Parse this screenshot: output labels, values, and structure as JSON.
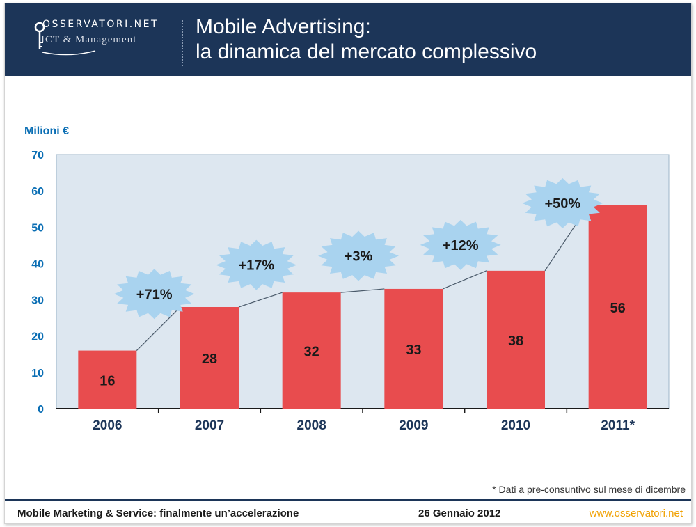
{
  "header": {
    "logo_brand": "OSSERVATORI.NET",
    "logo_sub": "ICT & Management",
    "title_line1": "Mobile Advertising:",
    "title_line2": "la dinamica del mercato complessivo"
  },
  "colors": {
    "header_bg": "#1c3558",
    "bar": "#e84c4e",
    "plot_bg": "#dde7f0",
    "badge": "#a9d3ef",
    "axis_text": "#0a6eb4",
    "footer_url": "#f0a000"
  },
  "chart_data": {
    "type": "bar",
    "ylabel": "Milioni €",
    "ylim": [
      0,
      70
    ],
    "yticks": [
      0,
      10,
      20,
      30,
      40,
      50,
      60,
      70
    ],
    "categories": [
      "2006",
      "2007",
      "2008",
      "2009",
      "2010",
      "2011*"
    ],
    "values": [
      16,
      28,
      32,
      33,
      38,
      56
    ],
    "value_labels": [
      "16",
      "28",
      "32",
      "33",
      "38",
      "56"
    ],
    "growth_labels": [
      "+71%",
      "+17%",
      "+3%",
      "+12%",
      "+50%"
    ]
  },
  "note": "* Dati a pre-consuntivo sul mese di dicembre",
  "footer": {
    "left": "Mobile Marketing & Service: finalmente un’accelerazione",
    "date": "26 Gennaio 2012",
    "url": "www.osservatori.net"
  }
}
